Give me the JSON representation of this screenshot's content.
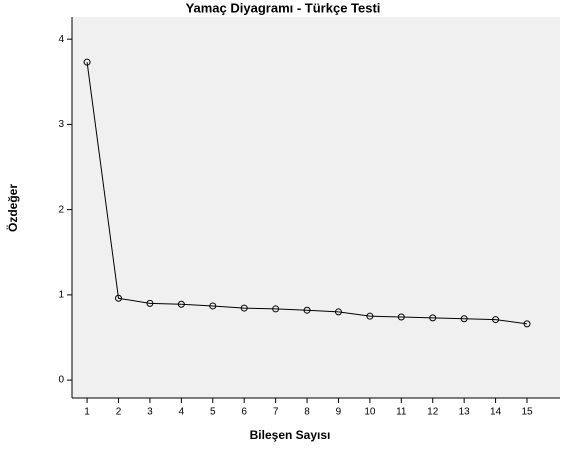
{
  "chart_data": {
    "type": "line",
    "title": "Yamaç Diyagramı - Türkçe Testi",
    "x_label": "Bileşen Sayısı",
    "y_label": "Özdeğer",
    "x": [
      1,
      2,
      3,
      4,
      5,
      6,
      7,
      8,
      9,
      10,
      11,
      12,
      13,
      14,
      15
    ],
    "series": [
      {
        "color": "#000000",
        "values": [
          3.73,
          0.96,
          0.9,
          0.89,
          0.87,
          0.845,
          0.835,
          0.82,
          0.8,
          0.75,
          0.74,
          0.73,
          0.72,
          0.71,
          0.66
        ]
      }
    ],
    "xlim": [
      0.52,
      16.05
    ],
    "xticks": [
      1,
      2,
      3,
      4,
      5,
      6,
      7,
      8,
      9,
      10,
      11,
      12,
      13,
      14,
      15
    ],
    "ylim": [
      -0.21,
      4.26
    ],
    "yticks": [
      0,
      1,
      2,
      3,
      4
    ],
    "background": "#f0f0f0"
  }
}
